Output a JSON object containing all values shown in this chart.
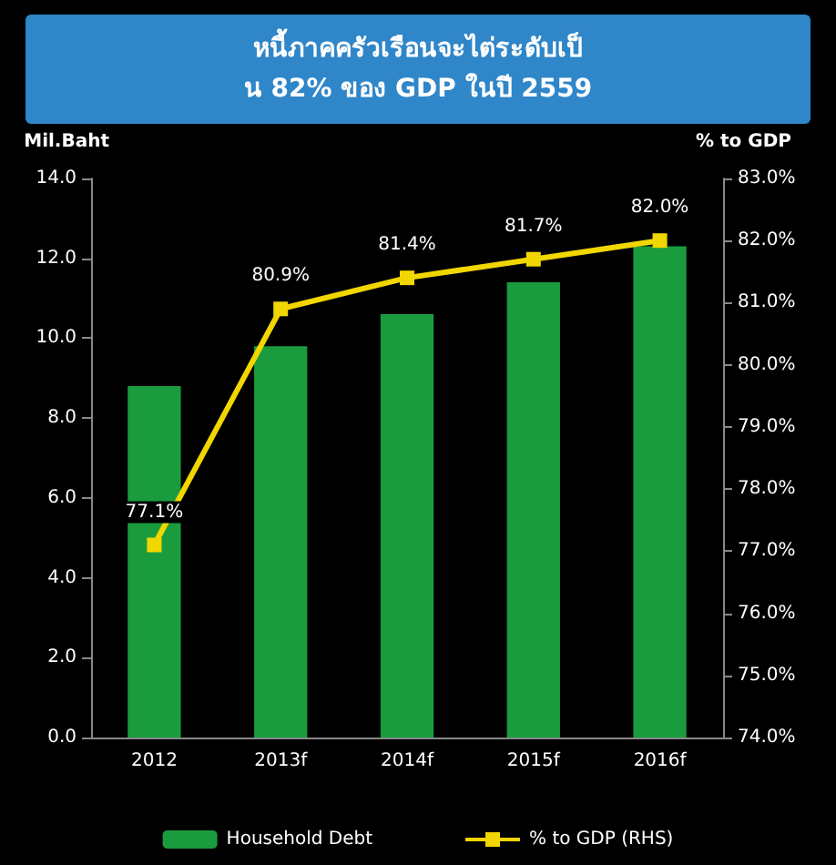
{
  "chart_data": {
    "type": "bar",
    "title": "หนี้ภาคครัวเรือนจะไต่ระดับเป็น 82% ของ GDP ในปี 2559",
    "ylabel": "Mil.Baht",
    "y2label": "% to GDP",
    "categories": [
      "2012",
      "2013f",
      "2014f",
      "2015f",
      "2016f"
    ],
    "series": [
      {
        "name": "Household Debt",
        "color": "#1a9c3e",
        "values": [
          8.8,
          9.8,
          10.6,
          11.4,
          12.3
        ]
      },
      {
        "name": "% to GDP (RHS)",
        "type": "line",
        "axis": "y2",
        "color": "#f2d600",
        "marker": "square",
        "values": [
          77.1,
          80.9,
          81.4,
          81.7,
          82.0
        ],
        "value_labels": [
          "77.1%",
          "80.9%",
          "81.4%",
          "81.7%",
          "82.0%"
        ]
      }
    ],
    "ylim": [
      0,
      14
    ],
    "yticks": [
      {
        "value": 0,
        "label": "0.0"
      },
      {
        "value": 2,
        "label": "2.0"
      },
      {
        "value": 4,
        "label": "4.0"
      },
      {
        "value": 6,
        "label": "6.0"
      },
      {
        "value": 8,
        "label": "8.0"
      },
      {
        "value": 10,
        "label": "10.0"
      },
      {
        "value": 12,
        "label": "12.0"
      },
      {
        "value": 14,
        "label": "14.0"
      }
    ],
    "y2lim": [
      74,
      83
    ],
    "y2ticks": [
      {
        "value": 74,
        "label": "74.0%"
      },
      {
        "value": 75,
        "label": "75.0%"
      },
      {
        "value": 76,
        "label": "76.0%"
      },
      {
        "value": 77,
        "label": "77.0%"
      },
      {
        "value": 78,
        "label": "78.0%"
      },
      {
        "value": 79,
        "label": "79.0%"
      },
      {
        "value": 80,
        "label": "80.0%"
      },
      {
        "value": 81,
        "label": "81.0%"
      },
      {
        "value": 82,
        "label": "82.0%"
      },
      {
        "value": 83,
        "label": "83.0%"
      }
    ],
    "grid": false,
    "legend": "bottom"
  }
}
